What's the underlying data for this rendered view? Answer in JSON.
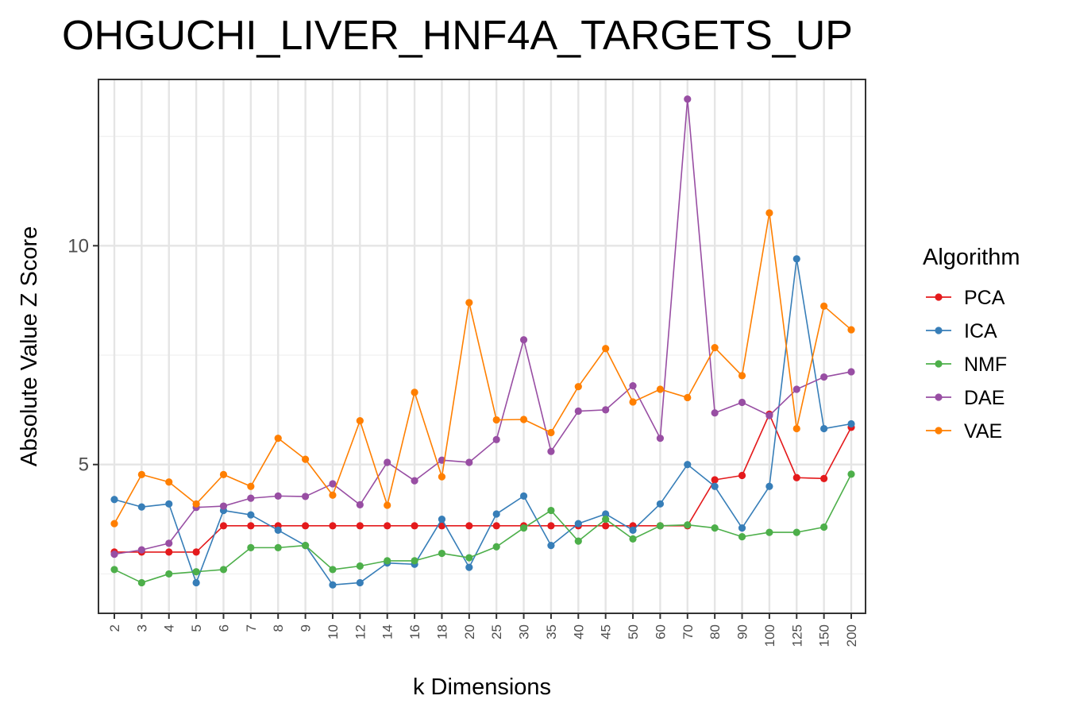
{
  "chart_data": {
    "type": "line",
    "title": "OHGUCHI_LIVER_HNF4A_TARGETS_UP",
    "xlabel": "k Dimensions",
    "ylabel": "Absolute Value Z Score",
    "categories": [
      "2",
      "3",
      "4",
      "5",
      "6",
      "7",
      "8",
      "9",
      "10",
      "12",
      "14",
      "16",
      "18",
      "20",
      "25",
      "30",
      "35",
      "40",
      "45",
      "50",
      "60",
      "70",
      "80",
      "90",
      "100",
      "125",
      "150",
      "200"
    ],
    "ylim": [
      1.6,
      13.8
    ],
    "yticks": [
      5,
      10
    ],
    "grid": true,
    "legend": {
      "title": "Algorithm",
      "position": "right"
    },
    "series": [
      {
        "name": "PCA",
        "color": "#e41a1c",
        "values": [
          3.0,
          3.0,
          3.0,
          3.0,
          3.6,
          3.6,
          3.6,
          3.6,
          3.6,
          3.6,
          3.6,
          3.6,
          3.6,
          3.6,
          3.6,
          3.6,
          3.6,
          3.6,
          3.6,
          3.6,
          3.6,
          3.6,
          4.65,
          4.75,
          6.15,
          4.7,
          4.68,
          5.85
        ]
      },
      {
        "name": "ICA",
        "color": "#377eb8",
        "values": [
          4.2,
          4.03,
          4.1,
          2.3,
          3.95,
          3.85,
          3.5,
          3.15,
          2.25,
          2.3,
          2.75,
          2.72,
          3.75,
          2.65,
          3.87,
          4.28,
          3.15,
          3.65,
          3.87,
          3.5,
          4.1,
          5.0,
          4.5,
          3.55,
          4.5,
          9.7,
          5.82,
          5.93
        ]
      },
      {
        "name": "NMF",
        "color": "#4daf4a",
        "values": [
          2.6,
          2.3,
          2.5,
          2.55,
          2.6,
          3.1,
          3.1,
          3.15,
          2.6,
          2.68,
          2.8,
          2.8,
          2.97,
          2.87,
          3.12,
          3.55,
          3.95,
          3.25,
          3.75,
          3.3,
          3.6,
          3.62,
          3.55,
          3.35,
          3.45,
          3.45,
          3.57,
          4.78
        ]
      },
      {
        "name": "DAE",
        "color": "#984ea3",
        "values": [
          2.95,
          3.05,
          3.2,
          4.02,
          4.05,
          4.23,
          4.28,
          4.27,
          4.56,
          4.08,
          5.05,
          4.63,
          5.1,
          5.05,
          5.57,
          7.85,
          5.3,
          6.22,
          6.25,
          6.8,
          5.6,
          13.35,
          6.18,
          6.42,
          6.12,
          6.72,
          7.0,
          7.12
        ]
      },
      {
        "name": "VAE",
        "color": "#ff7f00",
        "values": [
          3.65,
          4.77,
          4.6,
          4.1,
          4.77,
          4.5,
          5.6,
          5.12,
          4.3,
          6.0,
          4.07,
          6.65,
          4.72,
          8.7,
          6.02,
          6.03,
          5.73,
          6.78,
          7.65,
          6.43,
          6.72,
          6.53,
          7.67,
          7.03,
          10.75,
          5.82,
          8.62,
          8.08
        ]
      }
    ]
  }
}
